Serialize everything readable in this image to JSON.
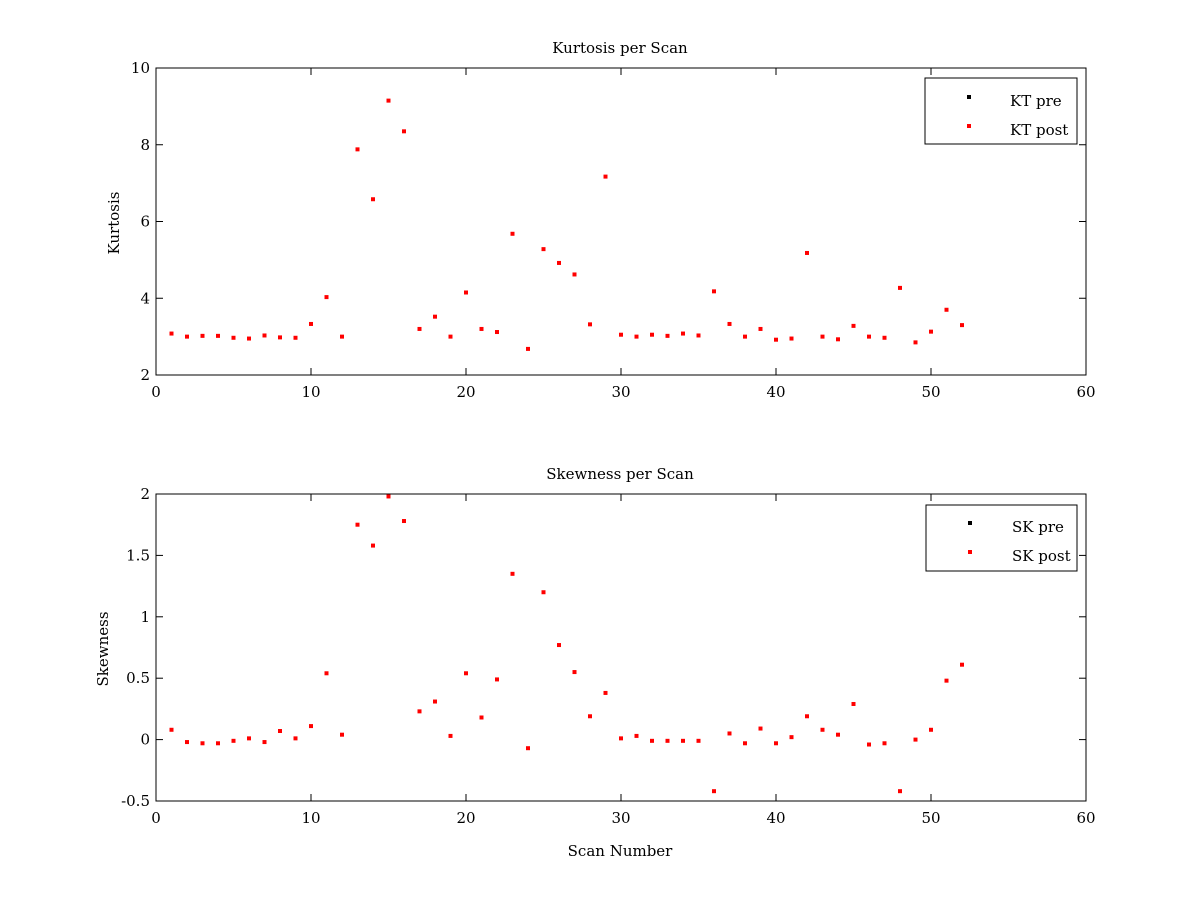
{
  "colors": {
    "pre": "#000000",
    "post": "#ff0000",
    "axis": "#000000",
    "background": "#ffffff"
  },
  "chart_data": [
    {
      "type": "scatter",
      "title": "Kurtosis per Scan",
      "xlabel": "",
      "ylabel": "Kurtosis",
      "xlim": [
        0,
        60
      ],
      "ylim": [
        2,
        10
      ],
      "xticks": [
        0,
        10,
        20,
        30,
        40,
        50,
        60
      ],
      "yticks": [
        2,
        4,
        6,
        8,
        10
      ],
      "xtick_labels": [
        "0",
        "10",
        "20",
        "30",
        "40",
        "50",
        "60"
      ],
      "ytick_labels": [
        "2",
        "4",
        "6",
        "8",
        "10"
      ],
      "grid": false,
      "legend_position": "top-right",
      "legend": [
        "KT pre",
        "KT post"
      ],
      "series": [
        {
          "name": "KT pre",
          "color": "#000000",
          "x": [],
          "y": []
        },
        {
          "name": "KT post",
          "color": "#ff0000",
          "x": [
            1,
            2,
            3,
            4,
            5,
            6,
            7,
            8,
            9,
            10,
            11,
            12,
            13,
            14,
            15,
            16,
            17,
            18,
            19,
            20,
            21,
            22,
            23,
            24,
            25,
            26,
            27,
            28,
            29,
            30,
            31,
            32,
            33,
            34,
            35,
            36,
            37,
            38,
            39,
            40,
            41,
            42,
            43,
            44,
            45,
            46,
            47,
            48,
            49,
            50,
            51,
            52
          ],
          "y": [
            3.08,
            3.0,
            3.02,
            3.02,
            2.97,
            2.95,
            3.03,
            2.98,
            2.97,
            3.33,
            4.03,
            3.0,
            7.88,
            6.58,
            9.15,
            8.35,
            3.2,
            3.52,
            3.0,
            4.15,
            3.2,
            3.12,
            5.68,
            2.68,
            5.28,
            4.92,
            4.62,
            3.32,
            7.17,
            3.05,
            3.0,
            3.05,
            3.02,
            3.08,
            3.03,
            4.18,
            3.33,
            3.0,
            3.2,
            2.92,
            2.95,
            5.18,
            3.0,
            2.93,
            3.28,
            3.0,
            2.97,
            4.27,
            2.85,
            3.13,
            3.7,
            3.3
          ]
        }
      ]
    },
    {
      "type": "scatter",
      "title": "Skewness per Scan",
      "xlabel": "Scan Number",
      "ylabel": "Skewness",
      "xlim": [
        0,
        60
      ],
      "ylim": [
        -0.5,
        2
      ],
      "xticks": [
        0,
        10,
        20,
        30,
        40,
        50,
        60
      ],
      "yticks": [
        -0.5,
        0,
        0.5,
        1,
        1.5,
        2
      ],
      "xtick_labels": [
        "0",
        "10",
        "20",
        "30",
        "40",
        "50",
        "60"
      ],
      "ytick_labels": [
        "-0.5",
        "0",
        "0.5",
        "1",
        "1.5",
        "2"
      ],
      "grid": false,
      "legend_position": "top-right",
      "legend": [
        "SK pre",
        "SK post"
      ],
      "series": [
        {
          "name": "SK pre",
          "color": "#000000",
          "x": [],
          "y": []
        },
        {
          "name": "SK post",
          "color": "#ff0000",
          "x": [
            1,
            2,
            3,
            4,
            5,
            6,
            7,
            8,
            9,
            10,
            11,
            12,
            13,
            14,
            15,
            16,
            17,
            18,
            19,
            20,
            21,
            22,
            23,
            24,
            25,
            26,
            27,
            28,
            29,
            30,
            31,
            32,
            33,
            34,
            35,
            36,
            37,
            38,
            39,
            40,
            41,
            42,
            43,
            44,
            45,
            46,
            47,
            48,
            49,
            50,
            51,
            52
          ],
          "y": [
            0.08,
            -0.02,
            -0.03,
            -0.03,
            -0.01,
            0.01,
            -0.02,
            0.07,
            0.01,
            0.11,
            0.54,
            0.04,
            1.75,
            1.58,
            1.98,
            1.78,
            0.23,
            0.31,
            0.03,
            0.54,
            0.18,
            0.49,
            1.35,
            -0.07,
            1.2,
            0.77,
            0.55,
            0.19,
            0.38,
            0.01,
            0.03,
            -0.01,
            -0.01,
            -0.01,
            -0.01,
            -0.42,
            0.05,
            -0.03,
            0.09,
            -0.03,
            0.02,
            0.19,
            0.08,
            0.04,
            0.29,
            -0.04,
            -0.03,
            -0.42,
            0.0,
            0.08,
            0.48,
            0.61
          ]
        }
      ]
    }
  ]
}
